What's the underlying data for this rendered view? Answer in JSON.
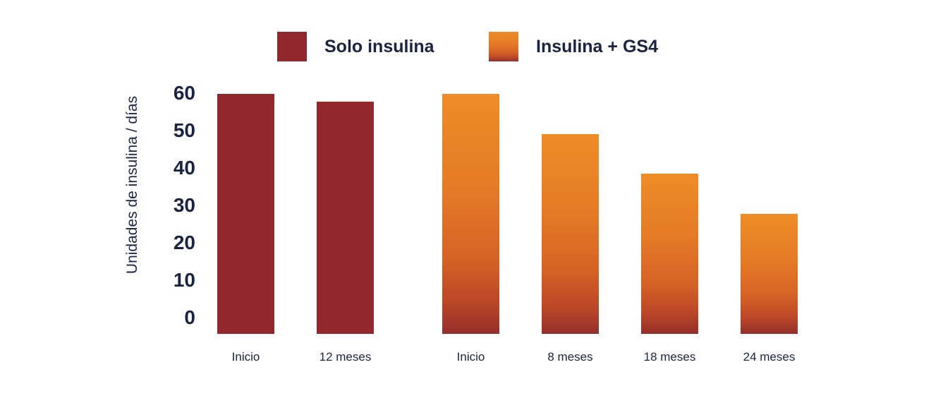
{
  "accent_colors": {
    "text_navy": "#1B2343",
    "solo_insulina_red": "#92272E",
    "gs4_orange_top": "#EF8C28",
    "gs4_red_bottom": "#952F2A",
    "background": "#FFFFFF"
  },
  "chart_data": {
    "type": "bar",
    "title": "",
    "xlabel": "",
    "ylabel": "Unidades de insulina / días",
    "ylim": [
      0,
      60
    ],
    "y_ticks": [
      60,
      50,
      40,
      30,
      20,
      10,
      0
    ],
    "grid": false,
    "legend_position": "top",
    "series": [
      {
        "name": "Solo insulina",
        "color": "#92272E",
        "categories": [
          "Inicio",
          "12 meses"
        ],
        "values": [
          60,
          58
        ]
      },
      {
        "name": "Insulina + GS4",
        "color": "gradient(#EF8C28 → #952F2A)",
        "categories": [
          "Inicio",
          "8 meses",
          "18 meses",
          "24 meses"
        ],
        "values": [
          60,
          50,
          40,
          30
        ]
      }
    ]
  }
}
